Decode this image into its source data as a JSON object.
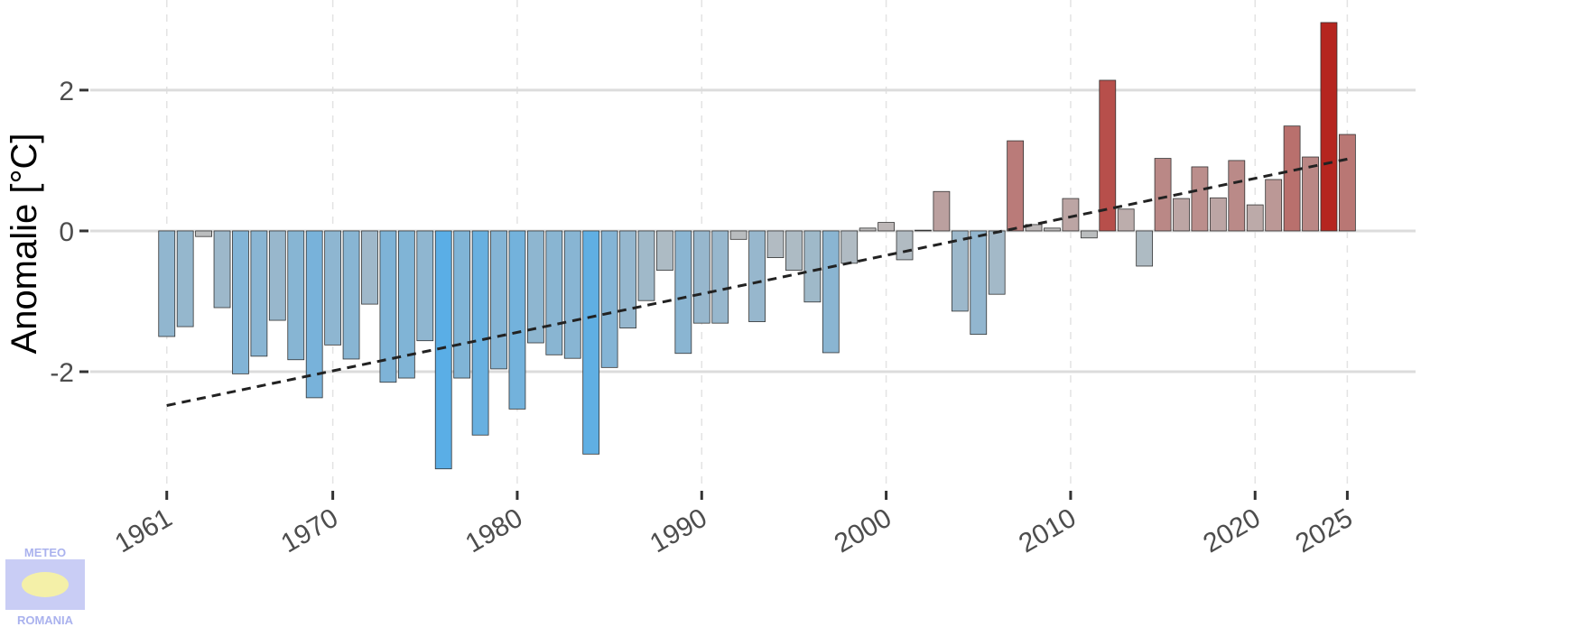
{
  "chart_data": {
    "type": "bar",
    "y_label": "Anomalie [°C]",
    "x": [
      1961,
      1962,
      1963,
      1964,
      1965,
      1966,
      1967,
      1968,
      1969,
      1970,
      1971,
      1972,
      1973,
      1974,
      1975,
      1976,
      1977,
      1978,
      1979,
      1980,
      1981,
      1982,
      1983,
      1984,
      1985,
      1986,
      1987,
      1988,
      1989,
      1990,
      1991,
      1992,
      1993,
      1994,
      1995,
      1996,
      1997,
      1998,
      1999,
      2000,
      2001,
      2002,
      2003,
      2004,
      2005,
      2006,
      2007,
      2008,
      2009,
      2010,
      2011,
      2012,
      2013,
      2014,
      2015,
      2016,
      2017,
      2018,
      2019,
      2020,
      2021,
      2022,
      2023,
      2024,
      2025
    ],
    "values": [
      -1.5,
      -1.36,
      -0.08,
      -1.09,
      -2.03,
      -1.78,
      -1.27,
      -1.83,
      -2.37,
      -1.62,
      -1.82,
      -1.04,
      -2.15,
      -2.09,
      -1.56,
      -3.38,
      -2.09,
      -2.9,
      -1.96,
      -2.53,
      -1.59,
      -1.76,
      -1.81,
      -3.17,
      -1.94,
      -1.38,
      -0.99,
      -0.56,
      -1.74,
      -1.31,
      -1.31,
      -0.12,
      -1.29,
      -0.38,
      -0.56,
      -1.01,
      -1.73,
      -0.46,
      0.04,
      0.12,
      -0.41,
      0.01,
      0.56,
      -1.14,
      -1.47,
      -0.9,
      1.28,
      0.09,
      0.04,
      0.46,
      -0.1,
      2.14,
      0.31,
      -0.5,
      1.03,
      0.46,
      0.91,
      0.47,
      1.0,
      0.37,
      0.73,
      1.49,
      1.05,
      2.96,
      1.37
    ],
    "color_scale": [
      "#5aaee6",
      "#bdbdbd",
      "#b5251f"
    ],
    "trend": {
      "x": [
        1961,
        2025
      ],
      "values": [
        -2.48,
        1.02
      ]
    },
    "xlim": [
      1959.3,
      2028.7
    ],
    "xticks": [
      1961,
      1970,
      1980,
      1990,
      2000,
      2010,
      2020,
      2025
    ],
    "ylim": [
      -3.64,
      3.28
    ],
    "yticks": [
      -2,
      0,
      2
    ],
    "grid": true
  },
  "logo": {
    "top": "METEO",
    "bottom": "ROMANIA"
  }
}
